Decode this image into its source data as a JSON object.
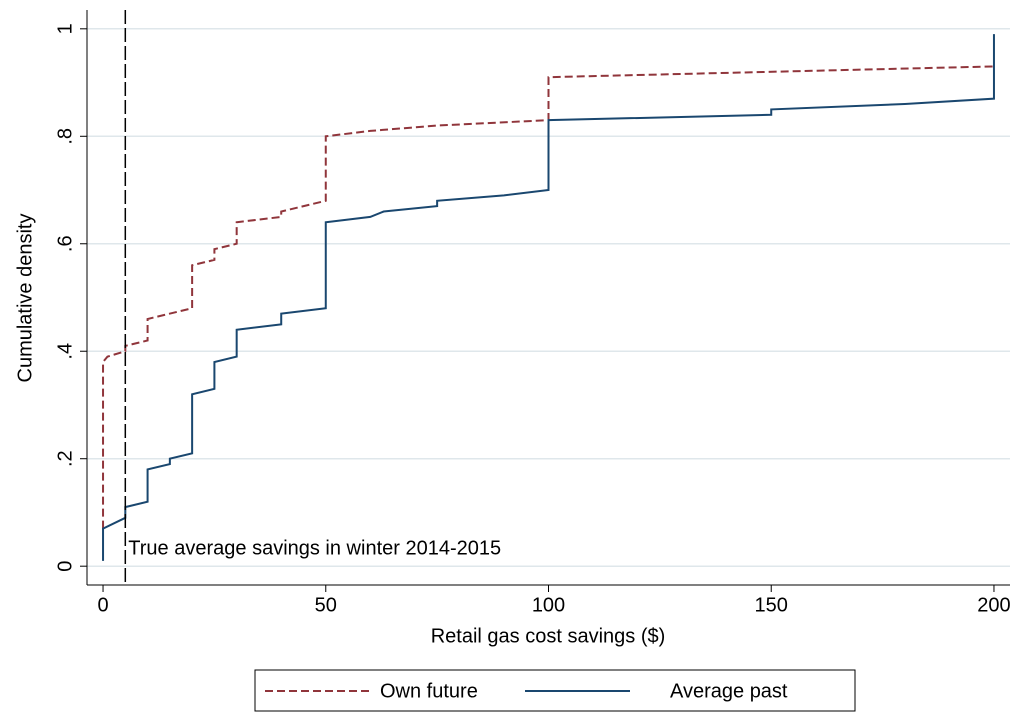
{
  "chart_data": {
    "type": "line",
    "x_label": "Retail gas cost savings ($)",
    "y_label": "Cumulative density",
    "xlim": [
      -3.6,
      203.6
    ],
    "ylim": [
      -0.035,
      1.035
    ],
    "xticks": [
      0,
      50,
      100,
      150,
      200
    ],
    "yticks": [
      0,
      {
        "value": 0.2,
        "label": ".2"
      },
      {
        "value": 0.4,
        "label": ".4"
      },
      {
        "value": 0.6,
        "label": ".6"
      },
      {
        "value": 0.8,
        "label": ".8"
      },
      1
    ],
    "grid": true,
    "xline": 5,
    "annotation": "True average savings in winter 2014-2015",
    "legend": "bottom",
    "series": [
      {
        "name": "Own future",
        "color": "#90353b",
        "dashed": true,
        "x": [
          0,
          0,
          1,
          5,
          5,
          10,
          10,
          20,
          20,
          25,
          25,
          30,
          30,
          40,
          40,
          50,
          50,
          60,
          75,
          100,
          100,
          200,
          200
        ],
        "values": [
          0.07,
          0.38,
          0.39,
          0.4,
          0.41,
          0.42,
          0.46,
          0.48,
          0.56,
          0.57,
          0.59,
          0.6,
          0.64,
          0.65,
          0.66,
          0.68,
          0.8,
          0.81,
          0.82,
          0.83,
          0.91,
          0.93,
          0.93
        ]
      },
      {
        "name": "Average past",
        "color": "#1a476f",
        "dashed": false,
        "x": [
          0,
          0,
          5,
          5,
          10,
          10,
          15,
          15,
          20,
          20,
          25,
          25,
          30,
          30,
          40,
          40,
          50,
          50,
          60,
          63,
          75,
          75,
          90,
          100,
          100,
          150,
          150,
          180,
          200,
          200
        ],
        "values": [
          0.01,
          0.07,
          0.09,
          0.11,
          0.12,
          0.18,
          0.19,
          0.2,
          0.21,
          0.32,
          0.33,
          0.38,
          0.39,
          0.44,
          0.45,
          0.47,
          0.48,
          0.64,
          0.65,
          0.66,
          0.67,
          0.68,
          0.69,
          0.7,
          0.83,
          0.84,
          0.85,
          0.86,
          0.87,
          0.99
        ]
      }
    ]
  }
}
